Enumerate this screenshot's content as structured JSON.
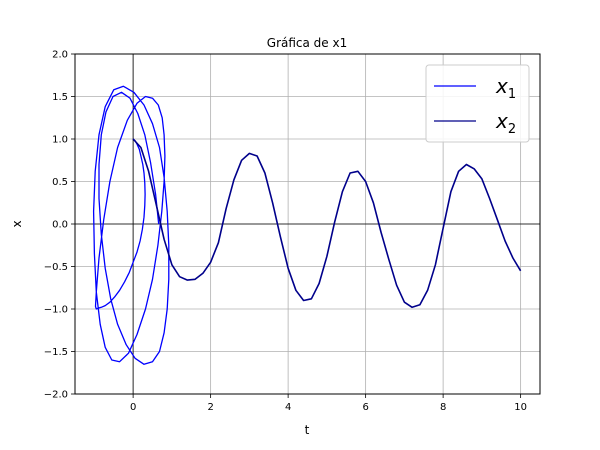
{
  "chart_data": {
    "type": "line",
    "title": "Gráfica de x1",
    "xlabel": "t",
    "ylabel": "x",
    "xlim": [
      -1.5,
      10.5
    ],
    "ylim": [
      -2.0,
      2.0
    ],
    "xticks": [
      0,
      2,
      4,
      6,
      8,
      10
    ],
    "yticks": [
      -2.0,
      -1.5,
      -1.0,
      -0.5,
      0.0,
      0.5,
      1.0,
      1.5,
      2.0
    ],
    "xtick_labels": [
      "0",
      "2",
      "4",
      "6",
      "8",
      "10"
    ],
    "ytick_labels": [
      "−2.0",
      "−1.5",
      "−1.0",
      "−0.5",
      "0.0",
      "0.5",
      "1.0",
      "1.5",
      "2.0"
    ],
    "grid": true,
    "zero_lines": true,
    "legend_position": "top-right",
    "series": [
      {
        "name": "x1",
        "legend_base": "x",
        "legend_sub": "1",
        "color": "#0000ff",
        "description": "phase-space loops",
        "x": [
          0.0,
          0.05,
          0.1,
          0.16,
          0.2,
          0.25,
          0.28,
          0.3,
          0.31,
          0.3,
          0.28,
          0.24,
          0.18,
          0.1,
          0.0,
          -0.1,
          -0.22,
          -0.35,
          -0.48,
          -0.6,
          -0.72,
          -0.82,
          -0.9,
          -0.95,
          -0.97,
          -0.95,
          -0.88,
          -0.76,
          -0.6,
          -0.4,
          -0.15,
          0.1,
          0.32,
          0.5,
          0.65,
          0.75,
          0.8,
          0.82,
          0.8,
          0.74,
          0.64,
          0.5,
          0.32,
          0.1,
          -0.12,
          -0.35,
          -0.55,
          -0.72,
          -0.85,
          -0.95,
          -1.0,
          -1.02,
          -0.98,
          -0.88,
          -0.72,
          -0.5,
          -0.25,
          0.02,
          0.28,
          0.5,
          0.68,
          0.8,
          0.88,
          0.92,
          0.92,
          0.88,
          0.8,
          0.68,
          0.5,
          0.28,
          0.05,
          -0.18,
          -0.4,
          -0.58,
          -0.72,
          -0.82,
          -0.88,
          -0.88,
          -0.82,
          -0.7,
          -0.52,
          -0.3,
          -0.08,
          0.12,
          0.3,
          0.45,
          0.58,
          0.66
        ],
        "y": [
          1.0,
          0.98,
          0.94,
          0.88,
          0.8,
          0.7,
          0.6,
          0.48,
          0.35,
          0.22,
          0.08,
          -0.06,
          -0.2,
          -0.33,
          -0.45,
          -0.57,
          -0.68,
          -0.78,
          -0.86,
          -0.92,
          -0.96,
          -0.98,
          -0.99,
          -1.0,
          -0.97,
          -0.8,
          -0.4,
          0.05,
          0.5,
          0.9,
          1.22,
          1.42,
          1.5,
          1.48,
          1.4,
          1.25,
          1.05,
          0.8,
          0.5,
          0.15,
          -0.25,
          -0.65,
          -1.0,
          -1.3,
          -1.52,
          -1.62,
          -1.6,
          -1.45,
          -1.18,
          -0.8,
          -0.35,
          0.15,
          0.62,
          1.05,
          1.38,
          1.58,
          1.62,
          1.55,
          1.4,
          1.18,
          0.9,
          0.55,
          0.15,
          -0.25,
          -0.65,
          -1.0,
          -1.28,
          -1.5,
          -1.62,
          -1.65,
          -1.58,
          -1.42,
          -1.18,
          -0.88,
          -0.52,
          -0.12,
          0.3,
          0.7,
          1.05,
          1.32,
          1.5,
          1.55,
          1.48,
          1.3,
          1.05,
          0.72,
          0.35,
          0.0
        ]
      },
      {
        "name": "x2",
        "legend_base": "x",
        "legend_sub": "2",
        "color": "#00008b",
        "description": "time response",
        "x": [
          0.0,
          0.2,
          0.4,
          0.6,
          0.8,
          1.0,
          1.2,
          1.4,
          1.6,
          1.8,
          2.0,
          2.2,
          2.4,
          2.6,
          2.8,
          3.0,
          3.2,
          3.4,
          3.6,
          3.8,
          4.0,
          4.2,
          4.4,
          4.6,
          4.8,
          5.0,
          5.2,
          5.4,
          5.6,
          5.8,
          6.0,
          6.2,
          6.4,
          6.6,
          6.8,
          7.0,
          7.2,
          7.4,
          7.6,
          7.8,
          8.0,
          8.2,
          8.4,
          8.6,
          8.8,
          9.0,
          9.2,
          9.4,
          9.6,
          9.8,
          10.0
        ],
        "y": [
          1.0,
          0.9,
          0.62,
          0.22,
          -0.18,
          -0.48,
          -0.62,
          -0.66,
          -0.65,
          -0.58,
          -0.45,
          -0.22,
          0.18,
          0.52,
          0.75,
          0.83,
          0.8,
          0.6,
          0.25,
          -0.15,
          -0.52,
          -0.78,
          -0.9,
          -0.88,
          -0.7,
          -0.38,
          0.02,
          0.38,
          0.6,
          0.62,
          0.5,
          0.25,
          -0.1,
          -0.42,
          -0.72,
          -0.92,
          -0.98,
          -0.95,
          -0.78,
          -0.48,
          -0.05,
          0.38,
          0.62,
          0.7,
          0.65,
          0.53,
          0.3,
          0.05,
          -0.2,
          -0.4,
          -0.55
        ]
      }
    ]
  },
  "legend": {
    "items": [
      {
        "base": "x",
        "sub": "1"
      },
      {
        "base": "x",
        "sub": "2"
      }
    ]
  }
}
